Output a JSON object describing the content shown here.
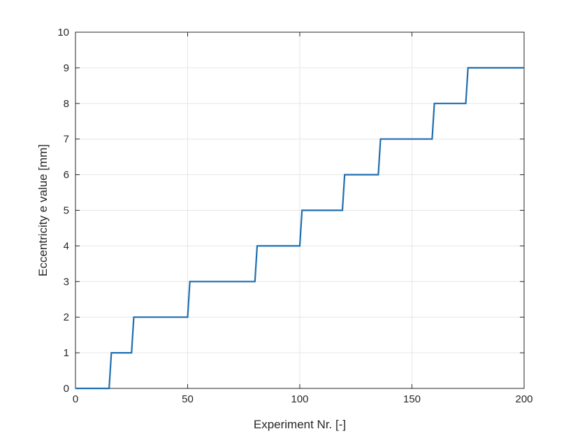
{
  "chart_data": {
    "type": "line",
    "title": "",
    "xlabel": "Experiment Nr. [-]",
    "ylabel": "Eccentricity e value [mm]",
    "xlim": [
      0,
      200
    ],
    "ylim": [
      0,
      10
    ],
    "xticks": [
      0,
      50,
      100,
      150,
      200
    ],
    "yticks": [
      0,
      1,
      2,
      3,
      4,
      5,
      6,
      7,
      8,
      9,
      10
    ],
    "grid": true,
    "legend": "none",
    "series": [
      {
        "color": "#1f6fb0",
        "x": [
          0,
          15,
          16,
          25,
          26,
          50,
          51,
          80,
          81,
          100,
          101,
          119,
          120,
          135,
          136,
          159,
          160,
          174,
          175,
          200
        ],
        "y": [
          0,
          0,
          1,
          1,
          2,
          2,
          3,
          3,
          4,
          4,
          5,
          5,
          6,
          6,
          7,
          7,
          8,
          8,
          9,
          9
        ]
      }
    ]
  }
}
